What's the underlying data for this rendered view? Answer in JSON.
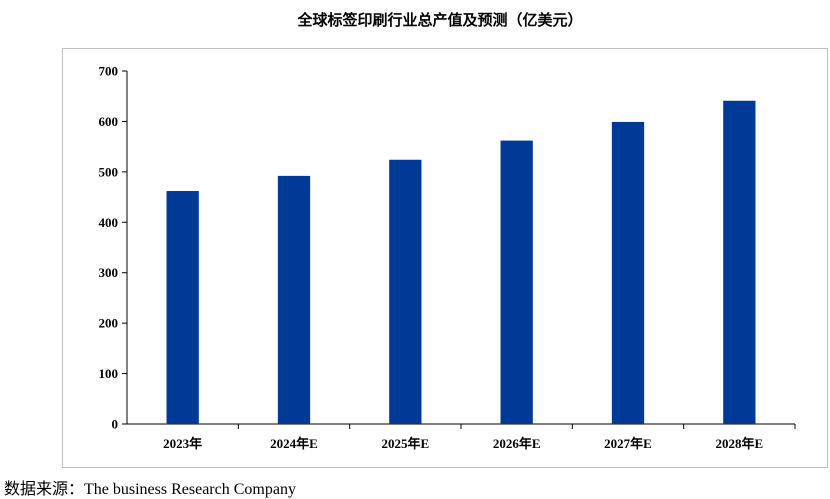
{
  "chart_data": {
    "type": "bar",
    "title": "全球标签印刷行业总产值及预测（亿美元）",
    "xlabel": "",
    "ylabel": "",
    "categories": [
      "2023年",
      "2024年E",
      "2025年E",
      "2026年E",
      "2027年E",
      "2028年E"
    ],
    "values": [
      462,
      492,
      524,
      562,
      599,
      641
    ],
    "ylim": [
      0,
      700
    ],
    "yticks": [
      0,
      100,
      200,
      300,
      400,
      500,
      600,
      700
    ],
    "grid": false,
    "legend": "none",
    "bar_color": "#003A96"
  },
  "source": "数据来源：The business Research Company"
}
